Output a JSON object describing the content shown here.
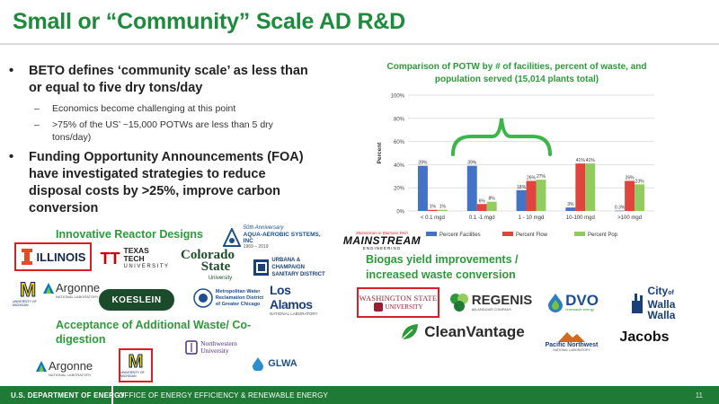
{
  "slide": {
    "title": "Small or “Community” Scale AD R&D",
    "page_number": "11"
  },
  "bullets": {
    "b1": "BETO defines ‘community scale’ as less than or equal to five dry tons/day",
    "b1_sub1": "Economics become challenging at this point",
    "b1_sub2": ">75% of the US’ ~15,000 POTWs are less than 5 dry tons/day)",
    "b2": "Funding Opportunity Announcements (FOA) have investigated strategies to reduce disposal costs by >25%, improve carbon conversion",
    "bullet_glyph": "•",
    "dash_glyph": "–"
  },
  "sections": {
    "reactor": "Innovative Reactor Designs",
    "waste": "Acceptance of Additional Waste/ Co-digestion",
    "biogas": "Biogas yield improvements / increased waste conversion"
  },
  "logos": {
    "illinois": "ILLINOIS",
    "aqua_1": "50th Anniversary",
    "aqua_2": "AQUA-AEROBIC SYSTEMS, INC",
    "aqua_3": "1969 – 2019",
    "ttu_1": "TEXAS TECH",
    "ttu_2": "UNIVERSITY",
    "mainstream_tag": "Mainstream in Biomass Tech",
    "mainstream": "MAINSTREAM",
    "mainstream_sub": "ENGINEERING",
    "umich_sub": "UNIVERSITY OF MICHIGAN",
    "argonne": "Argonne",
    "argonne_sub": "NATIONAL LABORATORY",
    "colorado_1": "Colorado",
    "colorado_2": "State",
    "colorado_3": "University",
    "ucsd_1": "URBANA & CHAMPAIGN",
    "ucsd_2": "SANITARY DISTRICT",
    "koeslein": "KOESLEIN",
    "mwrd_1": "Metropolitan Water",
    "mwrd_2": "Reclamation District",
    "mwrd_3": "of Greater Chicago",
    "losalamos": "Los Alamos",
    "losalamos_sub": "NATIONAL LABORATORY",
    "northwestern_1": "Northwestern",
    "northwestern_2": "University",
    "glwa": "GLWA",
    "wsu_1": "WASHINGTON STATE",
    "wsu_2": "UNIVERSITY",
    "regenis": "REGENIS",
    "regenis_sub": "AN ANDGAR COMPANY",
    "dvo": "DVO",
    "dvo_sub": "renewable energy",
    "walla_1": "City",
    "walla_of": "of",
    "walla_2": "Walla",
    "walla_3": "Walla",
    "cleanvantage": "CleanVantage",
    "pnnl_1": "Pacific Northwest",
    "pnnl_2": "NATIONAL LABORATORY",
    "jacobs": "Jacobs"
  },
  "footer": {
    "doe": "U.S. DEPARTMENT OF ENERGY",
    "eere": "OFFICE OF ENERGY EFFICIENCY & RENEWABLE ENERGY"
  },
  "colors": {
    "green": "#1e8a3c",
    "red": "#d81f26",
    "facilities": "#4472c4",
    "flow": "#e0443e",
    "pop": "#92cc5e"
  },
  "chart_data": {
    "type": "bar",
    "title": "Comparison of POTW by # of facilities, percent of waste, and population served (15,014 plants total)",
    "ylabel": "Percent",
    "xlabel": "",
    "ylim": [
      0,
      100
    ],
    "yticks": [
      "0%",
      "20%",
      "40%",
      "60%",
      "80%",
      "100%"
    ],
    "grid": true,
    "legend_position": "bottom",
    "categories": [
      "< 0.1 mgd",
      "0.1 -1 mgd",
      "1 - 10 mgd",
      "10-100 mgd",
      ">100 mgd"
    ],
    "series": [
      {
        "name": "Percent Facilities",
        "values": [
          39,
          39,
          18,
          3,
          0.3
        ],
        "labels": [
          "39%",
          "39%",
          "18%",
          "3%",
          "0.3%"
        ]
      },
      {
        "name": "Percent Flow",
        "values": [
          1,
          6,
          26,
          41,
          26
        ],
        "labels": [
          "1%",
          "6%",
          "26%",
          "41%",
          "26%"
        ]
      },
      {
        "name": "Percent Pop",
        "values": [
          1,
          8,
          27,
          41,
          23
        ],
        "labels": [
          "1%",
          "8%",
          "27%",
          "41%",
          "23%"
        ]
      }
    ]
  }
}
